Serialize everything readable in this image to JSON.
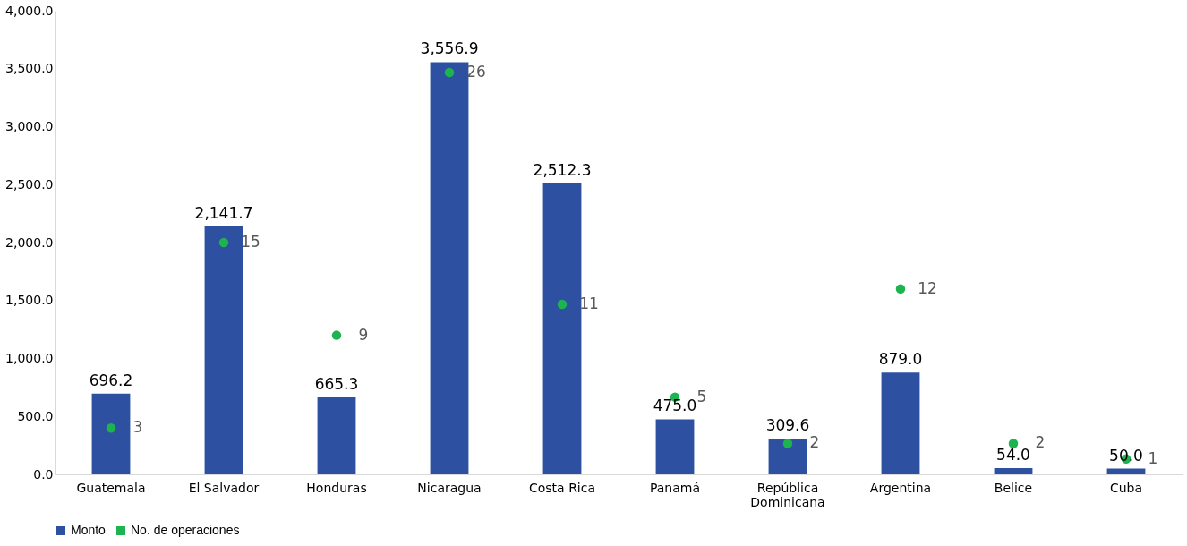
{
  "chart_data": {
    "type": "bar",
    "categories": [
      "Guatemala",
      "El Salvador",
      "Honduras",
      "Nicaragua",
      "Costa Rica",
      "Panamá",
      "República Dominicana",
      "Argentina",
      "Belice",
      "Cuba"
    ],
    "series": [
      {
        "name": "Monto",
        "color": "#2e50a0",
        "values": [
          696.2,
          2141.7,
          665.3,
          3556.9,
          2512.3,
          475.0,
          309.6,
          879.0,
          54.0,
          50.0
        ],
        "value_labels": [
          "696.2",
          "2,141.7",
          "665.3",
          "3,556.9",
          "2,512.3",
          "475.0",
          "309.6",
          "879.0",
          "54.0",
          "50.0"
        ]
      },
      {
        "name": "No. de operaciones",
        "type": "scatter",
        "axis": "y2",
        "color": "#1db34f",
        "values": [
          3,
          15,
          9,
          26,
          11,
          5,
          2,
          12,
          2,
          1
        ],
        "value_labels": [
          "3",
          "15",
          "9",
          "26",
          "11",
          "5",
          "2",
          "12",
          "2",
          "1"
        ]
      }
    ],
    "ylim": [
      0,
      4000
    ],
    "yticks": [
      {
        "value": 0,
        "label": "0.0"
      },
      {
        "value": 500,
        "label": "500.0"
      },
      {
        "value": 1000,
        "label": "1,000.0"
      },
      {
        "value": 1500,
        "label": "1,500.0"
      },
      {
        "value": 2000,
        "label": "2,000.0"
      },
      {
        "value": 2500,
        "label": "2,500.0"
      },
      {
        "value": 3000,
        "label": "3,000.0"
      },
      {
        "value": 3500,
        "label": "3,500.0"
      },
      {
        "value": 4000,
        "label": "4,000.0"
      }
    ],
    "y2lim": [
      0,
      30
    ],
    "legend": "bottom",
    "grid": false,
    "marker": "circle"
  }
}
